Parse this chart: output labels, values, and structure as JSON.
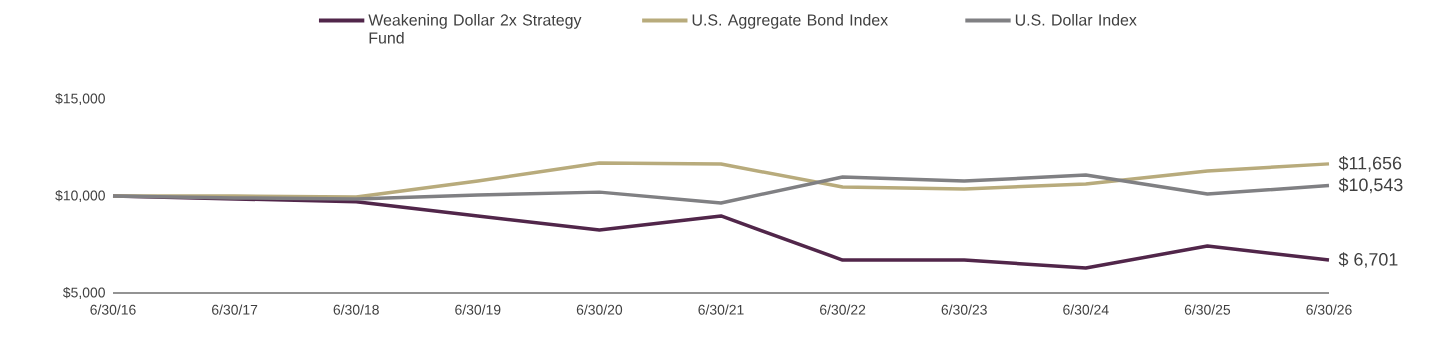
{
  "chart_data": {
    "type": "line",
    "categories": [
      "6/30/16",
      "6/30/17",
      "6/30/18",
      "6/30/19",
      "6/30/20",
      "6/30/21",
      "6/30/22",
      "6/30/23",
      "6/30/24",
      "6/30/25",
      "6/30/26"
    ],
    "series": [
      {
        "name": "Weakening Dollar 2x Strategy Fund",
        "color": "#51264a",
        "values": [
          10000,
          9850,
          9700,
          8970,
          8250,
          8970,
          6700,
          6700,
          6290,
          7420,
          6701
        ],
        "value_labels": [
          null,
          null,
          null,
          null,
          null,
          null,
          null,
          null,
          null,
          null,
          "$  6,701"
        ]
      },
      {
        "name": "U.S. Aggregate Bond Index",
        "color": "#b8ab7c",
        "values": [
          10000,
          10000,
          9950,
          10770,
          11700,
          11650,
          10460,
          10360,
          10620,
          11290,
          11656
        ],
        "value_labels": [
          null,
          null,
          null,
          null,
          null,
          null,
          null,
          null,
          null,
          null,
          "$11,656"
        ]
      },
      {
        "name": "U.S. Dollar Index",
        "color": "#808083",
        "values": [
          10000,
          9900,
          9850,
          10050,
          10200,
          9640,
          10980,
          10770,
          11080,
          10100,
          10543
        ],
        "value_labels": [
          null,
          null,
          null,
          null,
          null,
          null,
          null,
          null,
          null,
          null,
          "$10,543"
        ]
      }
    ],
    "ylim": [
      5000,
      15000
    ],
    "yticks": [
      {
        "value": 5000,
        "label": "$5,000"
      },
      {
        "value": 10000,
        "label": "$10,000"
      },
      {
        "value": 15000,
        "label": "$15,000"
      }
    ],
    "grid": false,
    "legend": "top",
    "marker": "none",
    "line_style": "solid"
  }
}
